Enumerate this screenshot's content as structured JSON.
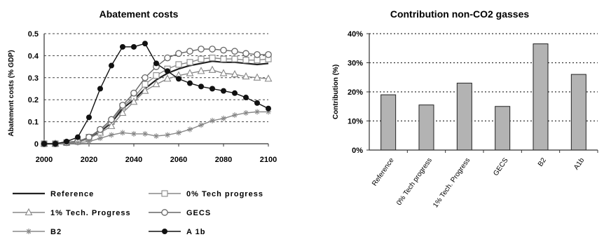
{
  "chart_data": [
    {
      "type": "line",
      "title": "Abatement costs",
      "xlabel": "",
      "ylabel": "Abatement costs (% GDP)",
      "xlim": [
        2000,
        2100
      ],
      "ylim": [
        0,
        0.5
      ],
      "x_ticks": [
        "2000",
        "2020",
        "2040",
        "2060",
        "2080",
        "2100"
      ],
      "y_ticks": [
        "0",
        "0.1",
        "0.2",
        "0.3",
        "0.4",
        "0.5"
      ],
      "grid": "horizontal dashed",
      "legend_position": "bottom",
      "x": [
        2000,
        2005,
        2010,
        2015,
        2020,
        2025,
        2030,
        2035,
        2040,
        2045,
        2050,
        2055,
        2060,
        2065,
        2070,
        2075,
        2080,
        2085,
        2090,
        2095,
        2100
      ],
      "series": [
        {
          "name": "Reference",
          "marker": "none",
          "color": "#222222",
          "values": [
            0,
            0,
            0.005,
            0.01,
            0.025,
            0.055,
            0.095,
            0.16,
            0.2,
            0.25,
            0.29,
            0.32,
            0.34,
            0.355,
            0.365,
            0.375,
            0.37,
            0.37,
            0.365,
            0.36,
            0.365
          ]
        },
        {
          "name": "0% Tech progress",
          "marker": "open-square",
          "color": "#888888",
          "values": [
            0,
            0,
            0.005,
            0.01,
            0.03,
            0.06,
            0.1,
            0.17,
            0.21,
            0.27,
            0.31,
            0.34,
            0.36,
            0.37,
            0.385,
            0.39,
            0.385,
            0.385,
            0.38,
            0.38,
            0.385
          ]
        },
        {
          "name": "1% Tech. Progress",
          "marker": "open-triangle",
          "color": "#888888",
          "values": [
            0,
            0,
            0.005,
            0.01,
            0.025,
            0.05,
            0.08,
            0.14,
            0.19,
            0.24,
            0.27,
            0.295,
            0.31,
            0.32,
            0.33,
            0.335,
            0.32,
            0.315,
            0.305,
            0.3,
            0.295
          ]
        },
        {
          "name": "GECS",
          "marker": "open-circle",
          "color": "#666666",
          "values": [
            0,
            0,
            0.005,
            0.01,
            0.03,
            0.065,
            0.11,
            0.175,
            0.23,
            0.3,
            0.35,
            0.39,
            0.41,
            0.42,
            0.43,
            0.43,
            0.425,
            0.42,
            0.41,
            0.405,
            0.405
          ]
        },
        {
          "name": "B2",
          "marker": "star",
          "color": "#888888",
          "values": [
            0,
            0,
            0.005,
            0.005,
            0.01,
            0.025,
            0.04,
            0.05,
            0.045,
            0.045,
            0.035,
            0.04,
            0.05,
            0.065,
            0.085,
            0.105,
            0.115,
            0.13,
            0.14,
            0.145,
            0.145
          ]
        },
        {
          "name": "A 1b",
          "marker": "filled-circle",
          "color": "#111111",
          "values": [
            0,
            0,
            0.01,
            0.03,
            0.12,
            0.25,
            0.355,
            0.44,
            0.44,
            0.455,
            0.365,
            0.33,
            0.295,
            0.275,
            0.26,
            0.25,
            0.24,
            0.23,
            0.21,
            0.185,
            0.16
          ]
        }
      ]
    },
    {
      "type": "bar",
      "title": "Contribution non-CO2 gasses",
      "xlabel": "",
      "ylabel": "Contribution (%)",
      "ylim": [
        0,
        40
      ],
      "y_ticks": [
        "0%",
        "10%",
        "20%",
        "30%",
        "40%"
      ],
      "grid": "horizontal dotted",
      "bar_color": "#b3b3b3",
      "categories": [
        "Reference",
        "0% Tech progress",
        "1% Tech. Progress",
        "GECS",
        "B2",
        "A1b"
      ],
      "values": [
        19,
        15.5,
        23,
        15,
        36.5,
        26
      ]
    }
  ]
}
